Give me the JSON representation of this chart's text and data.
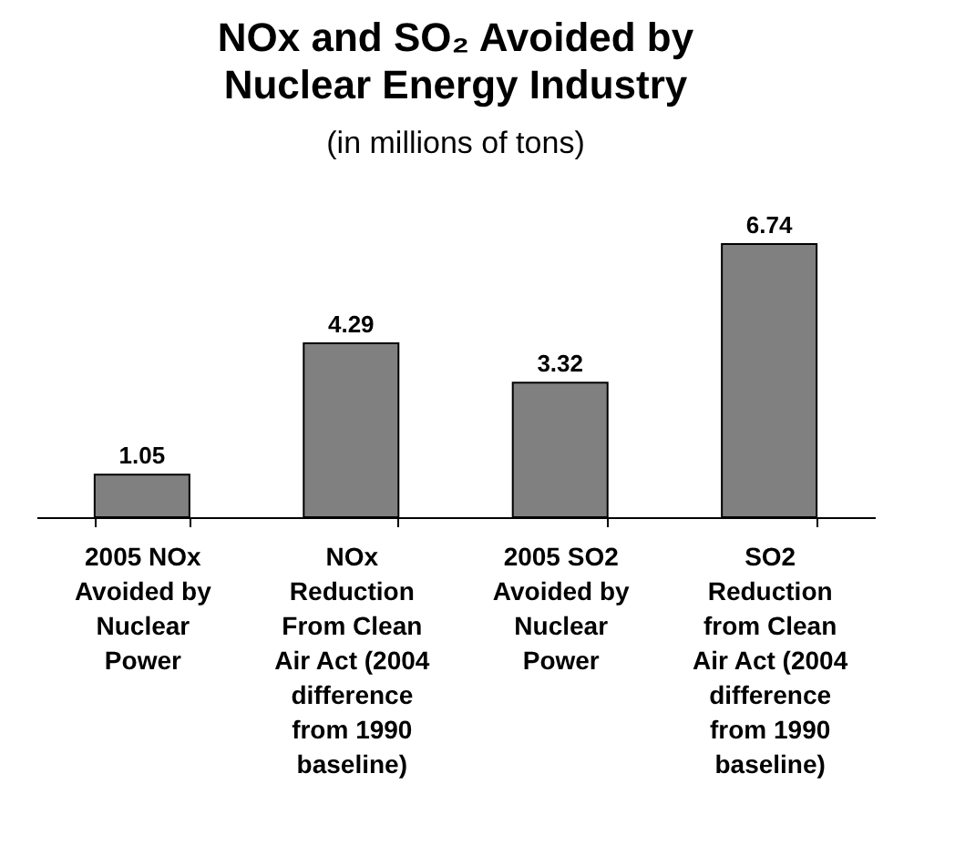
{
  "chart_data": {
    "type": "bar",
    "title": "NOx and SO₂ Avoided by\nNuclear Energy Industry",
    "subtitle": "(in millions of tons)",
    "categories": [
      "2005 NOx\nAvoided by\nNuclear\nPower",
      "NOx\nReduction\nFrom Clean\nAir Act (2004\ndifference\nfrom 1990\nbaseline)",
      "2005 SO2\nAvoided by\nNuclear\nPower",
      "SO2\nReduction\nfrom Clean\nAir Act (2004\ndifference\nfrom 1990\nbaseline)"
    ],
    "values": [
      1.05,
      4.29,
      3.32,
      6.74
    ],
    "color": "#808080",
    "data_labels": true,
    "tick_labels": "x"
  }
}
